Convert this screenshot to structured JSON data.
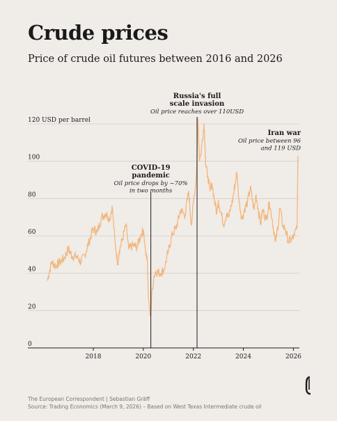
{
  "title": "Crude prices",
  "subtitle": "Price of crude oil futures between 2016 and 2026",
  "footer": {
    "credit": "The European Correspondent | Sebastian Gräff",
    "source": "Source: Trading Economics (March 9, 2026) – Based on West Texas Intermediate crude oil"
  },
  "chart_data": {
    "type": "line",
    "ylabel": "USD per barrel",
    "ylim": [
      0,
      120
    ],
    "yticks": [
      0,
      20,
      40,
      60,
      80,
      100,
      120
    ],
    "xlim": [
      "2016-03-01",
      "2026-03-09"
    ],
    "xticks": [
      "2018",
      "2020",
      "2022",
      "2024",
      "2026"
    ],
    "grid": true,
    "line_color": "#f2b77f",
    "series": [
      {
        "x": [
          "2016-03-01",
          "2016-05-01",
          "2016-07-01",
          "2016-09-01",
          "2016-11-01",
          "2017-01-01",
          "2017-03-01",
          "2017-05-01",
          "2017-07-01",
          "2017-09-01",
          "2017-11-01",
          "2018-01-01",
          "2018-03-01",
          "2018-05-01",
          "2018-07-01",
          "2018-09-01",
          "2018-10-03",
          "2018-11-15",
          "2018-12-24",
          "2019-01-15",
          "2019-03-01",
          "2019-04-23",
          "2019-06-01",
          "2019-08-01",
          "2019-10-01",
          "2019-12-01",
          "2020-01-06",
          "2020-02-01",
          "2020-03-01",
          "2020-03-15",
          "2020-04-01",
          "2020-04-20",
          "2020-05-01",
          "2020-06-01",
          "2020-07-01",
          "2020-09-01",
          "2020-11-01",
          "2021-01-01",
          "2021-03-01",
          "2021-05-01",
          "2021-07-01",
          "2021-09-01",
          "2021-10-25",
          "2021-12-01",
          "2022-01-15",
          "2022-02-15",
          "2022-03-08",
          "2022-04-01",
          "2022-05-01",
          "2022-06-08",
          "2022-07-01",
          "2022-08-01",
          "2022-09-01",
          "2022-10-01",
          "2022-11-01",
          "2022-12-09",
          "2023-01-01",
          "2023-03-01",
          "2023-03-17",
          "2023-05-01",
          "2023-06-01",
          "2023-08-01",
          "2023-09-27",
          "2023-11-01",
          "2023-12-13",
          "2024-01-15",
          "2024-03-01",
          "2024-04-12",
          "2024-06-04",
          "2024-07-05",
          "2024-09-10",
          "2024-10-07",
          "2024-12-01",
          "2025-01-15",
          "2025-03-01",
          "2025-04-09",
          "2025-05-01",
          "2025-06-20",
          "2025-08-01",
          "2025-09-01",
          "2025-10-20",
          "2025-12-01",
          "2026-01-15",
          "2026-02-10",
          "2026-02-25",
          "2026-03-03",
          "2026-03-09"
        ],
        "y": [
          36,
          46,
          44,
          46,
          48,
          53,
          49,
          49,
          46,
          50,
          57,
          64,
          62,
          70,
          72,
          69,
          76,
          56,
          45,
          52,
          58,
          66,
          53,
          55,
          54,
          61,
          63,
          52,
          46,
          28,
          20,
          17,
          27,
          38,
          41,
          40,
          42,
          52,
          61,
          65,
          74,
          71,
          84,
          66,
          82,
          92,
          123,
          100,
          108,
          120,
          97,
          92,
          84,
          88,
          80,
          72,
          79,
          69,
          66,
          72,
          70,
          80,
          94,
          78,
          69,
          74,
          78,
          86,
          74,
          82,
          66,
          74,
          69,
          78,
          68,
          57,
          60,
          75,
          65,
          64,
          57,
          58,
          60,
          64,
          67,
          86,
          103
        ]
      }
    ],
    "annotations": [
      {
        "date": "2020-04-20",
        "title": "COVID-19 pandemic",
        "title_lines": [
          "COVID-19",
          "pandemic"
        ],
        "text_lines": [
          "Oil price drops by ~70%",
          "in two months"
        ]
      },
      {
        "date": "2022-02-24",
        "title": "Russia's full scale invasion",
        "title_lines": [
          "Russia's full",
          "scale invasion"
        ],
        "text_lines": [
          "Oil price reaches over 110USD"
        ]
      },
      {
        "date": "2026-03-09",
        "title": "Iran war",
        "title_lines": [
          "Iran war"
        ],
        "text_lines": [
          "Oil price between  96",
          "and 119 USD"
        ]
      }
    ]
  }
}
